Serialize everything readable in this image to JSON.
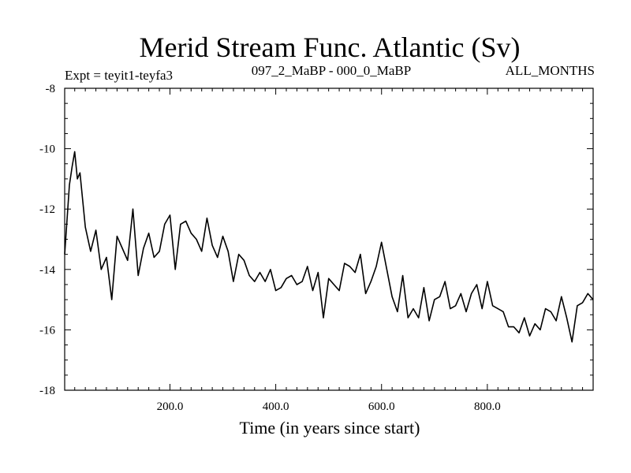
{
  "chart_data": {
    "type": "line",
    "title": "Merid Stream Func. Atlantic (Sv)",
    "subtitle_left": "Expt = teyit1-teyfa3",
    "subtitle_center": "097_2_MaBP - 000_0_MaBP",
    "subtitle_right": "ALL_MONTHS",
    "xlabel": "Time (in years since start)",
    "ylabel": "",
    "xlim": [
      1,
      1000
    ],
    "ylim": [
      -18,
      -8
    ],
    "x_ticks": [
      200,
      400,
      600,
      800
    ],
    "x_tick_labels": [
      "200.0",
      "400.0",
      "600.0",
      "800.0"
    ],
    "y_ticks": [
      -8,
      -10,
      -12,
      -14,
      -16,
      -18
    ],
    "y_tick_labels": [
      "-8",
      "-10",
      "-12",
      "-14",
      "-16",
      "-18"
    ],
    "series": [
      {
        "name": "Merid Stream Func. Atlantic",
        "x": [
          1,
          10,
          15,
          20,
          25,
          30,
          40,
          50,
          60,
          70,
          80,
          90,
          100,
          110,
          120,
          130,
          140,
          150,
          160,
          170,
          180,
          190,
          200,
          210,
          220,
          230,
          240,
          250,
          260,
          270,
          280,
          290,
          300,
          310,
          320,
          330,
          340,
          350,
          360,
          370,
          380,
          390,
          400,
          410,
          420,
          430,
          440,
          450,
          460,
          470,
          480,
          490,
          500,
          510,
          520,
          530,
          540,
          550,
          560,
          570,
          580,
          590,
          600,
          610,
          620,
          630,
          640,
          650,
          660,
          670,
          680,
          690,
          700,
          710,
          720,
          730,
          740,
          750,
          760,
          770,
          780,
          790,
          800,
          810,
          820,
          830,
          840,
          850,
          860,
          870,
          880,
          890,
          900,
          910,
          920,
          930,
          940,
          950,
          960,
          970,
          980,
          990,
          1000
        ],
        "values": [
          -13.5,
          -11.2,
          -10.6,
          -10.1,
          -11.0,
          -10.8,
          -12.6,
          -13.4,
          -12.7,
          -14.0,
          -13.6,
          -15.0,
          -12.9,
          -13.3,
          -13.7,
          -12.0,
          -14.2,
          -13.3,
          -12.8,
          -13.6,
          -13.4,
          -12.5,
          -12.2,
          -14.0,
          -12.5,
          -12.4,
          -12.8,
          -13.0,
          -13.4,
          -12.3,
          -13.2,
          -13.6,
          -12.9,
          -13.4,
          -14.4,
          -13.5,
          -13.7,
          -14.2,
          -14.4,
          -14.1,
          -14.4,
          -14.0,
          -14.7,
          -14.6,
          -14.3,
          -14.2,
          -14.5,
          -14.4,
          -13.9,
          -14.7,
          -14.1,
          -15.6,
          -14.3,
          -14.5,
          -14.7,
          -13.8,
          -13.9,
          -14.1,
          -13.5,
          -14.8,
          -14.4,
          -13.9,
          -13.1,
          -14.0,
          -14.9,
          -15.4,
          -14.2,
          -15.6,
          -15.3,
          -15.6,
          -14.6,
          -15.7,
          -15.0,
          -14.9,
          -14.4,
          -15.3,
          -15.2,
          -14.8,
          -15.4,
          -14.8,
          -14.5,
          -15.3,
          -14.4,
          -15.2,
          -15.3,
          -15.4,
          -15.9,
          -15.9,
          -16.1,
          -15.6,
          -16.2,
          -15.8,
          -16.0,
          -15.3,
          -15.4,
          -15.7,
          -14.9,
          -15.6,
          -16.4,
          -15.2,
          -15.1,
          -14.8,
          -15.0
        ]
      }
    ]
  }
}
